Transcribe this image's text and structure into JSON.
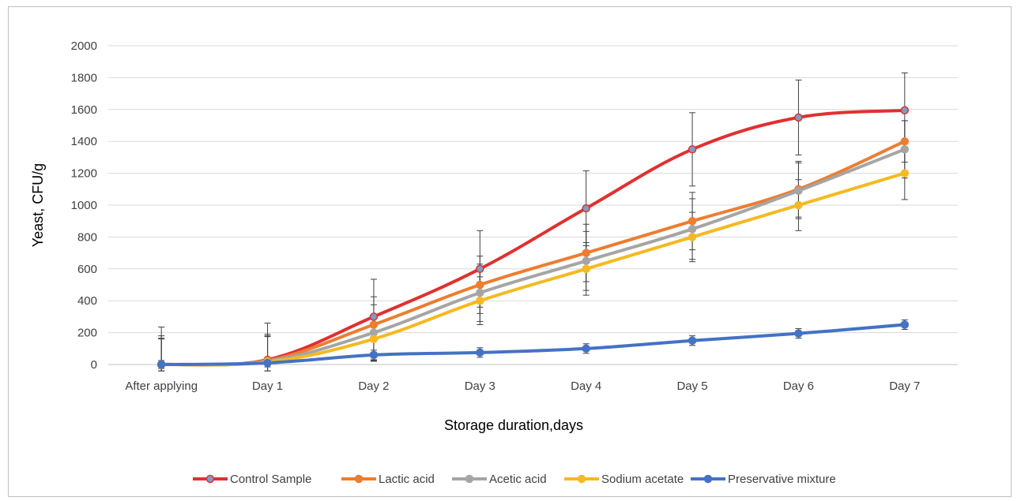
{
  "chart_data": {
    "type": "line",
    "title": "",
    "xlabel": "Storage duration,days",
    "ylabel": "Yeast, CFU/g",
    "categories": [
      "After applying",
      "Day 1",
      "Day 2",
      "Day 3",
      "Day 4",
      "Day 5",
      "Day 6",
      "Day 7"
    ],
    "ylim": [
      0,
      2000
    ],
    "yticks": [
      "0",
      "200",
      "400",
      "600",
      "800",
      "1000",
      "1200",
      "1400",
      "1600",
      "1800",
      "2000"
    ],
    "grid": true,
    "legend_position": "bottom",
    "series": [
      {
        "name": "Control Sample",
        "color": "#e03030",
        "marker_fill": "#7f9cc9",
        "values": [
          0,
          30,
          300,
          600,
          980,
          1350,
          1550,
          1595
        ],
        "errors": [
          235,
          230,
          235,
          240,
          235,
          230,
          235,
          235
        ]
      },
      {
        "name": "Lactic acid",
        "color": "#ed7d31",
        "marker_fill": "#ed7d31",
        "values": [
          0,
          25,
          250,
          500,
          700,
          900,
          1100,
          1400
        ],
        "errors": [
          180,
          165,
          175,
          180,
          180,
          180,
          175,
          130
        ]
      },
      {
        "name": "Acetic acid",
        "color": "#a5a5a5",
        "marker_fill": "#a5a5a5",
        "values": [
          0,
          20,
          200,
          450,
          650,
          850,
          1090,
          1350
        ],
        "errors": [
          165,
          160,
          175,
          180,
          185,
          190,
          175,
          180
        ]
      },
      {
        "name": "Sodium acetate",
        "color": "#f5b921",
        "marker_fill": "#f5b921",
        "values": [
          0,
          15,
          160,
          400,
          600,
          800,
          1000,
          1200
        ],
        "errors": [
          160,
          160,
          140,
          150,
          165,
          155,
          160,
          165
        ]
      },
      {
        "name": "Preservative mixture",
        "color": "#4472c4",
        "marker_fill": "#4472c4",
        "values": [
          0,
          10,
          60,
          75,
          100,
          150,
          195,
          250
        ],
        "errors": [
          25,
          25,
          30,
          30,
          30,
          30,
          30,
          30
        ]
      }
    ]
  }
}
